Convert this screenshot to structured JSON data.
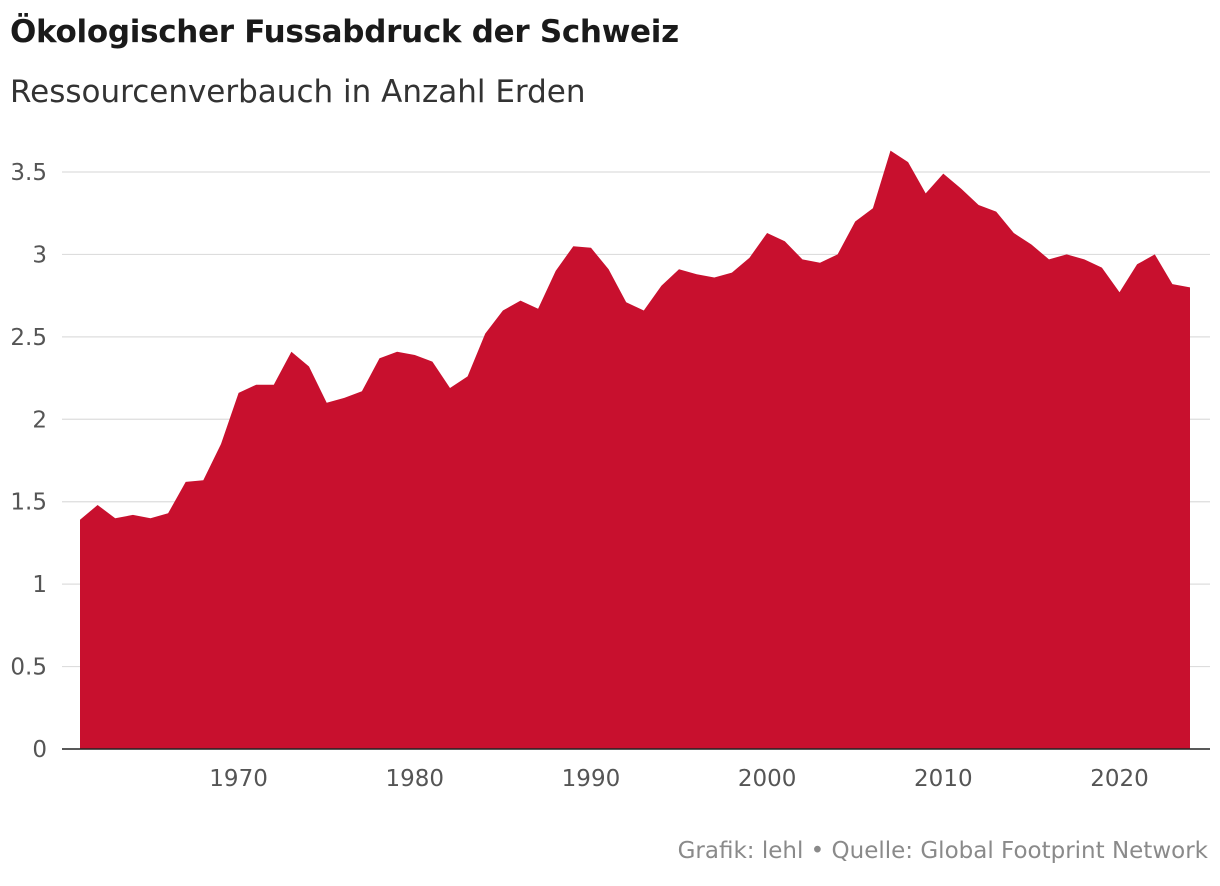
{
  "title": "Ökologischer Fussabdruck der Schweiz",
  "subtitle": "Ressourcenverbauch in Anzahl Erden",
  "source": "Grafik: lehl • Quelle: Global Footprint Network",
  "chart_data": {
    "type": "area",
    "title": "Ökologischer Fussabdruck der Schweiz",
    "subtitle": "Ressourcenverbauch in Anzahl Erden",
    "xlabel": "",
    "ylabel": "",
    "xlim": [
      1960,
      2025
    ],
    "ylim": [
      0,
      3.6
    ],
    "grid": true,
    "color": "#c8102e",
    "y_ticks": [
      {
        "value": 0,
        "label": "0"
      },
      {
        "value": 0.5,
        "label": "0.5"
      },
      {
        "value": 1,
        "label": "1"
      },
      {
        "value": 1.5,
        "label": "1.5"
      },
      {
        "value": 2,
        "label": "2"
      },
      {
        "value": 2.5,
        "label": "2.5"
      },
      {
        "value": 3,
        "label": "3"
      },
      {
        "value": 3.5,
        "label": "3.5"
      }
    ],
    "x_ticks": [
      {
        "value": 1970,
        "label": "1970"
      },
      {
        "value": 1980,
        "label": "1980"
      },
      {
        "value": 1990,
        "label": "1990"
      },
      {
        "value": 2000,
        "label": "2000"
      },
      {
        "value": 2010,
        "label": "2010"
      },
      {
        "value": 2020,
        "label": "2020"
      }
    ],
    "x": [
      1961,
      1962,
      1963,
      1964,
      1965,
      1966,
      1967,
      1968,
      1969,
      1970,
      1971,
      1972,
      1973,
      1974,
      1975,
      1976,
      1977,
      1978,
      1979,
      1980,
      1981,
      1982,
      1983,
      1984,
      1985,
      1986,
      1987,
      1988,
      1989,
      1990,
      1991,
      1992,
      1993,
      1994,
      1995,
      1996,
      1997,
      1998,
      1999,
      2000,
      2001,
      2002,
      2003,
      2004,
      2005,
      2006,
      2007,
      2008,
      2009,
      2010,
      2011,
      2012,
      2013,
      2014,
      2015,
      2016,
      2017,
      2018,
      2019,
      2020,
      2021,
      2022,
      2023,
      2024
    ],
    "values": [
      1.39,
      1.48,
      1.4,
      1.42,
      1.4,
      1.43,
      1.62,
      1.63,
      1.85,
      2.16,
      2.21,
      2.21,
      2.41,
      2.32,
      2.1,
      2.13,
      2.17,
      2.37,
      2.41,
      2.39,
      2.35,
      2.19,
      2.26,
      2.52,
      2.66,
      2.72,
      2.67,
      2.9,
      3.05,
      3.04,
      2.91,
      2.71,
      2.66,
      2.81,
      2.91,
      2.88,
      2.86,
      2.89,
      2.98,
      3.13,
      3.08,
      2.97,
      2.95,
      3.0,
      3.2,
      3.28,
      3.63,
      3.56,
      3.37,
      3.49,
      3.4,
      3.3,
      3.26,
      3.13,
      3.06,
      2.97,
      3.0,
      2.97,
      2.92,
      2.77,
      2.94,
      3.0,
      2.82,
      2.8
    ]
  }
}
